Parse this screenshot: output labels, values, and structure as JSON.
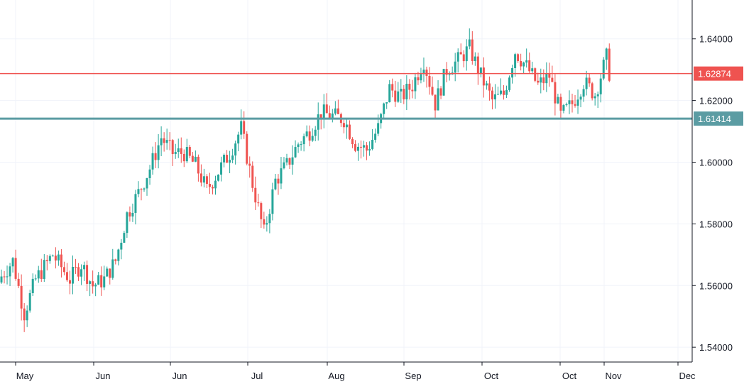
{
  "chart_data": {
    "type": "candlestick",
    "title": "",
    "xlabel": "",
    "ylabel": "",
    "ylim": [
      1.5352,
      1.6526
    ],
    "y_ticks": [
      "1.54000",
      "1.56000",
      "1.58000",
      "1.60000",
      "1.62000",
      "1.64000"
    ],
    "y_tick_values": [
      1.54,
      1.56,
      1.58,
      1.6,
      1.62,
      1.64
    ],
    "x_ticks": [
      "May",
      "Jun",
      "Jun",
      "Jul",
      "Aug",
      "Sep",
      "Oct",
      "Oct",
      "Nov",
      "Dec"
    ],
    "grid": true,
    "colors": {
      "up": "#26a69a",
      "down": "#ef5350",
      "grid": "#f0f3fa",
      "axis": "#131722"
    },
    "levels": [
      {
        "price": "1.62874",
        "value": 1.62874,
        "color": "#ef5350"
      },
      {
        "price": "1.61414",
        "value": 1.61414,
        "color": "#5b9ca3"
      }
    ],
    "anchors": [
      [
        0,
        1.563
      ],
      [
        4,
        1.568
      ],
      [
        8,
        1.551
      ],
      [
        12,
        1.562
      ],
      [
        18,
        1.57
      ],
      [
        24,
        1.562
      ],
      [
        28,
        1.567
      ],
      [
        32,
        1.56
      ],
      [
        36,
        1.562
      ],
      [
        40,
        1.568
      ],
      [
        44,
        1.583
      ],
      [
        48,
        1.59
      ],
      [
        52,
        1.598
      ],
      [
        56,
        1.608
      ],
      [
        60,
        1.603
      ],
      [
        64,
        1.603
      ],
      [
        68,
        1.599
      ],
      [
        72,
        1.591
      ],
      [
        76,
        1.597
      ],
      [
        80,
        1.603
      ],
      [
        84,
        1.611
      ],
      [
        88,
        1.593
      ],
      [
        92,
        1.577
      ],
      [
        96,
        1.594
      ],
      [
        100,
        1.599
      ],
      [
        104,
        1.606
      ],
      [
        108,
        1.61
      ],
      [
        112,
        1.616
      ],
      [
        116,
        1.615
      ],
      [
        120,
        1.614
      ],
      [
        124,
        1.606
      ],
      [
        128,
        1.604
      ],
      [
        132,
        1.611
      ],
      [
        136,
        1.624
      ],
      [
        140,
        1.621
      ],
      [
        144,
        1.625
      ],
      [
        148,
        1.633
      ],
      [
        152,
        1.619
      ],
      [
        156,
        1.63
      ],
      [
        160,
        1.633
      ],
      [
        164,
        1.637
      ],
      [
        168,
        1.628
      ],
      [
        172,
        1.62
      ],
      [
        176,
        1.622
      ],
      [
        180,
        1.636
      ],
      [
        184,
        1.631
      ],
      [
        188,
        1.625
      ],
      [
        192,
        1.628
      ],
      [
        196,
        1.615
      ],
      [
        200,
        1.619
      ],
      [
        204,
        1.626
      ],
      [
        208,
        1.622
      ],
      [
        212,
        1.634
      ],
      [
        213,
        1.629
      ]
    ]
  }
}
